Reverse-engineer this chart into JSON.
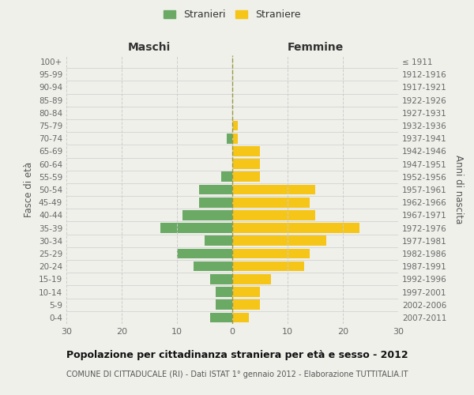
{
  "age_groups": [
    "100+",
    "95-99",
    "90-94",
    "85-89",
    "80-84",
    "75-79",
    "70-74",
    "65-69",
    "60-64",
    "55-59",
    "50-54",
    "45-49",
    "40-44",
    "35-39",
    "30-34",
    "25-29",
    "20-24",
    "15-19",
    "10-14",
    "5-9",
    "0-4"
  ],
  "birth_years": [
    "≤ 1911",
    "1912-1916",
    "1917-1921",
    "1922-1926",
    "1927-1931",
    "1932-1936",
    "1937-1941",
    "1942-1946",
    "1947-1951",
    "1952-1956",
    "1957-1961",
    "1962-1966",
    "1967-1971",
    "1972-1976",
    "1977-1981",
    "1982-1986",
    "1987-1991",
    "1992-1996",
    "1997-2001",
    "2002-2006",
    "2007-2011"
  ],
  "males": [
    0,
    0,
    0,
    0,
    0,
    0,
    1,
    0,
    0,
    2,
    6,
    6,
    9,
    13,
    5,
    10,
    7,
    4,
    3,
    3,
    4
  ],
  "females": [
    0,
    0,
    0,
    0,
    0,
    1,
    1,
    5,
    5,
    5,
    15,
    14,
    15,
    23,
    17,
    14,
    13,
    7,
    5,
    5,
    3
  ],
  "male_color": "#6aaa64",
  "female_color": "#f5c518",
  "background_color": "#f0f0eb",
  "grid_color": "#cccccc",
  "title": "Popolazione per cittadinanza straniera per età e sesso - 2012",
  "subtitle": "COMUNE DI CITTADUCALE (RI) - Dati ISTAT 1° gennaio 2012 - Elaborazione TUTTITALIA.IT",
  "xlabel_left": "Maschi",
  "xlabel_right": "Femmine",
  "ylabel_left": "Fasce di età",
  "ylabel_right": "Anni di nascita",
  "legend_male": "Stranieri",
  "legend_female": "Straniere",
  "xlim": 30
}
